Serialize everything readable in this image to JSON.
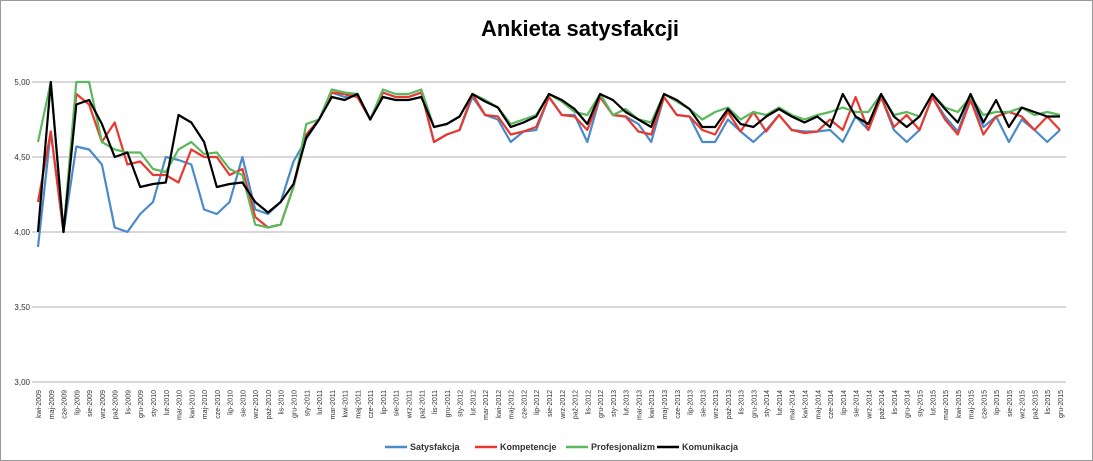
{
  "chart_data": {
    "type": "line",
    "title": "Ankieta satysfakcji",
    "categories": [
      "kwi-2009",
      "maj-2009",
      "cze-2009",
      "lip-2009",
      "sie-2009",
      "wrz-2009",
      "paź-2009",
      "lis-2009",
      "gru-2009",
      "sty-2010",
      "lut-2010",
      "mar-2010",
      "kwi-2010",
      "maj-2010",
      "cze-2010",
      "lip-2010",
      "sie-2010",
      "wrz-2010",
      "paź-2010",
      "lis-2010",
      "gru-2010",
      "sty-2011",
      "lut-2011",
      "mar-2011",
      "kwi-2011",
      "maj-2011",
      "cze-2011",
      "lip-2011",
      "sie-2011",
      "wrz-2011",
      "paź-2011",
      "lis-2011",
      "gru-2011",
      "sty-2012",
      "lut-2012",
      "mar-2012",
      "kwi-2012",
      "maj-2012",
      "cze-2012",
      "lip-2012",
      "sie-2012",
      "wrz-2012",
      "paź-2012",
      "lis-2012",
      "gru-2012",
      "sty-2013",
      "lut-2013",
      "mar-2013",
      "kwi-2013",
      "maj-2013",
      "cze-2013",
      "lip-2013",
      "sie-2013",
      "wrz-2013",
      "paź-2013",
      "lis-2013",
      "gru-2013",
      "sty-2014",
      "lut-2014",
      "mar-2014",
      "kwi-2014",
      "maj-2014",
      "cze-2014",
      "lip-2014",
      "sie-2014",
      "wrz-2014",
      "paź-2014",
      "lis-2014",
      "gru-2014",
      "sty-2015",
      "lut-2015",
      "mar-2015",
      "kwi-2015",
      "maj-2015",
      "cze-2015",
      "lip-2015",
      "sie-2015",
      "wrz-2015",
      "paź-2015",
      "lis-2015",
      "gru-2015"
    ],
    "series": [
      {
        "name": "Satysfakcja",
        "color": "#4a8ac9",
        "values": [
          3.9,
          4.67,
          4.0,
          4.57,
          4.55,
          4.45,
          4.03,
          4.0,
          4.12,
          4.2,
          4.5,
          4.48,
          4.45,
          4.15,
          4.12,
          4.2,
          4.5,
          4.15,
          4.12,
          4.2,
          4.47,
          4.62,
          4.75,
          4.93,
          4.9,
          4.92,
          4.75,
          4.93,
          4.9,
          4.9,
          4.93,
          4.6,
          4.65,
          4.68,
          4.9,
          4.78,
          4.75,
          4.6,
          4.67,
          4.68,
          4.9,
          4.78,
          4.78,
          4.6,
          4.9,
          4.78,
          4.77,
          4.72,
          4.6,
          4.9,
          4.78,
          4.77,
          4.6,
          4.6,
          4.75,
          4.67,
          4.6,
          4.68,
          4.78,
          4.68,
          4.67,
          4.67,
          4.68,
          4.6,
          4.77,
          4.68,
          4.9,
          4.68,
          4.6,
          4.68,
          4.9,
          4.77,
          4.67,
          4.9,
          4.7,
          4.77,
          4.6,
          4.75,
          4.68,
          4.6,
          4.68
        ]
      },
      {
        "name": "Kompetencje",
        "color": "#e8392f",
        "values": [
          4.2,
          4.67,
          4.0,
          4.92,
          4.85,
          4.6,
          4.73,
          4.45,
          4.47,
          4.38,
          4.38,
          4.33,
          4.55,
          4.5,
          4.5,
          4.38,
          4.42,
          4.1,
          4.03,
          4.05,
          4.3,
          4.65,
          4.75,
          4.93,
          4.92,
          4.9,
          4.75,
          4.93,
          4.9,
          4.9,
          4.93,
          4.6,
          4.65,
          4.68,
          4.92,
          4.78,
          4.77,
          4.65,
          4.67,
          4.7,
          4.9,
          4.78,
          4.77,
          4.68,
          4.9,
          4.78,
          4.77,
          4.67,
          4.65,
          4.9,
          4.78,
          4.77,
          4.68,
          4.65,
          4.8,
          4.67,
          4.8,
          4.67,
          4.78,
          4.68,
          4.66,
          4.67,
          4.75,
          4.68,
          4.9,
          4.68,
          4.9,
          4.7,
          4.78,
          4.68,
          4.9,
          4.75,
          4.65,
          4.88,
          4.65,
          4.77,
          4.8,
          4.77,
          4.68,
          4.77,
          4.68
        ]
      },
      {
        "name": "Profesjonalizm",
        "color": "#5cb85c",
        "values": [
          4.6,
          5.0,
          4.0,
          5.0,
          5.0,
          4.6,
          4.55,
          4.53,
          4.53,
          4.42,
          4.4,
          4.55,
          4.6,
          4.52,
          4.53,
          4.42,
          4.38,
          4.05,
          4.03,
          4.05,
          4.3,
          4.72,
          4.75,
          4.95,
          4.93,
          4.92,
          4.75,
          4.95,
          4.92,
          4.92,
          4.95,
          4.7,
          4.72,
          4.77,
          4.92,
          4.88,
          4.83,
          4.72,
          4.75,
          4.78,
          4.92,
          4.87,
          4.8,
          4.78,
          4.92,
          4.78,
          4.82,
          4.75,
          4.73,
          4.92,
          4.87,
          4.82,
          4.75,
          4.8,
          4.83,
          4.75,
          4.8,
          4.78,
          4.83,
          4.78,
          4.75,
          4.78,
          4.8,
          4.83,
          4.8,
          4.8,
          4.92,
          4.78,
          4.8,
          4.77,
          4.92,
          4.83,
          4.8,
          4.9,
          4.78,
          4.8,
          4.8,
          4.83,
          4.78,
          4.8,
          4.78
        ]
      },
      {
        "name": "Komunikacja",
        "color": "#000000",
        "values": [
          4.0,
          5.0,
          4.0,
          4.85,
          4.88,
          4.72,
          4.5,
          4.53,
          4.3,
          4.32,
          4.33,
          4.78,
          4.73,
          4.6,
          4.3,
          4.32,
          4.33,
          4.2,
          4.13,
          4.2,
          4.32,
          4.63,
          4.75,
          4.9,
          4.88,
          4.92,
          4.75,
          4.9,
          4.88,
          4.88,
          4.9,
          4.7,
          4.72,
          4.77,
          4.92,
          4.87,
          4.83,
          4.7,
          4.73,
          4.77,
          4.92,
          4.88,
          4.82,
          4.72,
          4.92,
          4.88,
          4.8,
          4.75,
          4.7,
          4.92,
          4.88,
          4.82,
          4.7,
          4.7,
          4.82,
          4.72,
          4.7,
          4.77,
          4.82,
          4.77,
          4.73,
          4.77,
          4.7,
          4.92,
          4.77,
          4.72,
          4.92,
          4.77,
          4.7,
          4.77,
          4.92,
          4.82,
          4.73,
          4.92,
          4.73,
          4.88,
          4.7,
          4.83,
          4.8,
          4.77,
          4.77
        ]
      }
    ],
    "ylim": [
      3,
      5
    ],
    "yticks": [
      {
        "value": 3,
        "label": "3,00"
      },
      {
        "value": 3.5,
        "label": "3,50"
      },
      {
        "value": 4,
        "label": "4,00"
      },
      {
        "value": 4.5,
        "label": "4,50"
      },
      {
        "value": 5,
        "label": "5,00"
      }
    ],
    "grid": true
  }
}
